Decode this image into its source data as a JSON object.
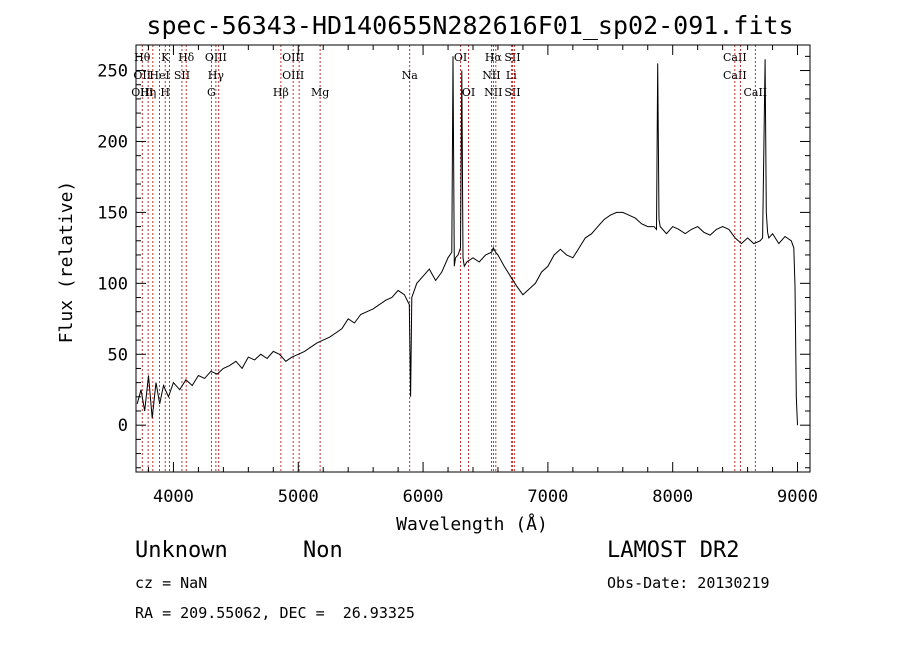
{
  "chart_data": {
    "type": "line",
    "title": "spec-56343-HD140655N282616F01_sp02-091.fits",
    "xlabel": "Wavelength (Å)",
    "ylabel": "Flux (relative)",
    "xlim": [
      3700,
      9100
    ],
    "ylim": [
      -33,
      268
    ],
    "xticks": [
      4000,
      5000,
      6000,
      7000,
      8000,
      9000
    ],
    "yticks": [
      0,
      50,
      100,
      150,
      200,
      250
    ],
    "grid": false,
    "series": [
      {
        "values_note": "",
        "x": [
          3710,
          3740,
          3770,
          3800,
          3830,
          3860,
          3890,
          3920,
          3960,
          4000,
          4050,
          4100,
          4150,
          4200,
          4250,
          4300,
          4350,
          4400,
          4450,
          4500,
          4550,
          4600,
          4650,
          4700,
          4750,
          4800,
          4850,
          4900,
          4950,
          5000,
          5050,
          5100,
          5150,
          5200,
          5250,
          5300,
          5350,
          5400,
          5450,
          5500,
          5550,
          5600,
          5650,
          5700,
          5750,
          5800,
          5850,
          5890,
          5900,
          5910,
          5950,
          6000,
          6050,
          6100,
          6150,
          6200,
          6230,
          6240,
          6250,
          6260,
          6280,
          6300,
          6310,
          6320,
          6330,
          6350,
          6400,
          6450,
          6500,
          6550,
          6563,
          6580,
          6600,
          6650,
          6700,
          6750,
          6800,
          6850,
          6900,
          6950,
          7000,
          7050,
          7100,
          7150,
          7200,
          7250,
          7300,
          7350,
          7400,
          7450,
          7500,
          7550,
          7600,
          7650,
          7700,
          7750,
          7800,
          7850,
          7870,
          7880,
          7890,
          7900,
          7950,
          8000,
          8050,
          8100,
          8150,
          8200,
          8250,
          8300,
          8350,
          8400,
          8450,
          8500,
          8550,
          8600,
          8650,
          8700,
          8720,
          8740,
          8750,
          8760,
          8770,
          8800,
          8850,
          8900,
          8950,
          8970,
          8980,
          8990,
          9000
        ],
        "y": [
          15,
          25,
          10,
          35,
          5,
          30,
          15,
          28,
          20,
          30,
          25,
          32,
          28,
          35,
          33,
          38,
          36,
          40,
          42,
          45,
          40,
          48,
          46,
          50,
          47,
          52,
          50,
          45,
          48,
          50,
          52,
          55,
          58,
          60,
          62,
          65,
          68,
          75,
          72,
          78,
          80,
          82,
          85,
          88,
          90,
          95,
          92,
          85,
          20,
          90,
          100,
          105,
          110,
          102,
          108,
          118,
          122,
          260,
          112,
          118,
          120,
          125,
          250,
          118,
          112,
          115,
          118,
          115,
          120,
          122,
          125,
          122,
          120,
          112,
          105,
          98,
          92,
          96,
          100,
          108,
          112,
          120,
          124,
          120,
          118,
          125,
          132,
          135,
          140,
          145,
          148,
          150,
          150,
          148,
          146,
          142,
          140,
          140,
          138,
          255,
          145,
          140,
          135,
          140,
          138,
          135,
          138,
          140,
          136,
          134,
          138,
          140,
          138,
          132,
          128,
          132,
          128,
          130,
          132,
          258,
          150,
          136,
          132,
          135,
          128,
          133,
          130,
          125,
          98,
          20,
          0
        ]
      }
    ],
    "line_labels": [
      {
        "wl": 3750,
        "texts": [
          "Hθ",
          "OII",
          "OIII"
        ]
      },
      {
        "wl": 3797,
        "texts": [
          "",
          "",
          "Hη"
        ]
      },
      {
        "wl": 3835,
        "texts": [
          "",
          "",
          ""
        ]
      },
      {
        "wl": 3889,
        "texts": [
          "",
          "HeI",
          ""
        ]
      },
      {
        "wl": 3934,
        "texts": [
          "K",
          "",
          "H"
        ]
      },
      {
        "wl": 3969,
        "texts": [
          "",
          "",
          ""
        ]
      },
      {
        "wl": 4068,
        "texts": [
          "",
          "SII",
          ""
        ]
      },
      {
        "wl": 4102,
        "texts": [
          "Hδ",
          "",
          ""
        ]
      },
      {
        "wl": 4304,
        "texts": [
          "",
          "",
          "G"
        ]
      },
      {
        "wl": 4340,
        "texts": [
          "OIII",
          "Hγ",
          ""
        ]
      },
      {
        "wl": 4363,
        "texts": [
          "",
          "",
          ""
        ]
      },
      {
        "wl": 4861,
        "texts": [
          "",
          "",
          "Hβ"
        ]
      },
      {
        "wl": 4959,
        "texts": [
          "OIII",
          "OIII",
          ""
        ]
      },
      {
        "wl": 5007,
        "texts": [
          "",
          "",
          ""
        ]
      },
      {
        "wl": 5175,
        "texts": [
          "",
          "",
          "Mg"
        ]
      },
      {
        "wl": 5893,
        "texts": [
          "",
          "Na",
          ""
        ]
      },
      {
        "wl": 6300,
        "texts": [
          "OI",
          "",
          ""
        ]
      },
      {
        "wl": 6364,
        "texts": [
          "",
          "",
          "OI"
        ]
      },
      {
        "wl": 6548,
        "texts": [
          "",
          "NII",
          ""
        ]
      },
      {
        "wl": 6563,
        "texts": [
          "Hα",
          "",
          "NII"
        ]
      },
      {
        "wl": 6583,
        "texts": [
          "",
          "",
          ""
        ]
      },
      {
        "wl": 6707,
        "texts": [
          "",
          "Li",
          ""
        ]
      },
      {
        "wl": 6716,
        "texts": [
          "SII",
          "",
          "SII"
        ]
      },
      {
        "wl": 6731,
        "texts": [
          "",
          "",
          ""
        ]
      },
      {
        "wl": 8498,
        "texts": [
          "CaII",
          "CaII",
          ""
        ]
      },
      {
        "wl": 8542,
        "texts": [
          "",
          "",
          ""
        ]
      },
      {
        "wl": 8662,
        "texts": [
          "",
          "",
          "CaII"
        ]
      }
    ]
  },
  "footer": {
    "object_type": "Unknown",
    "subclass": "Non",
    "survey": "LAMOST DR2",
    "cz": "cz = NaN",
    "obs_date": "Obs-Date: 20130219",
    "coords": "RA = 209.55062, DEC =  26.93325"
  }
}
